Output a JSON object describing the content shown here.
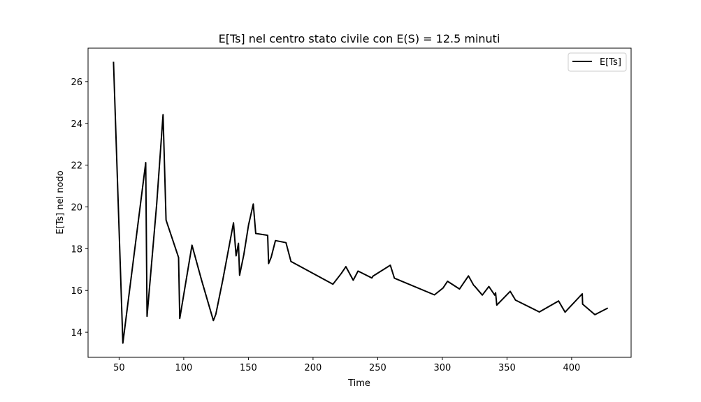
{
  "chart_data": {
    "type": "line",
    "title": "E[Ts] nel centro stato civile con E(S) = 12.5 minuti",
    "xlabel": "Time",
    "ylabel": "E[Ts] nel nodo",
    "xlim": [
      26,
      446
    ],
    "ylim": [
      12.8,
      27.6
    ],
    "xticks": [
      50,
      100,
      150,
      200,
      250,
      300,
      350,
      400
    ],
    "yticks": [
      14,
      16,
      18,
      20,
      22,
      24,
      26
    ],
    "grid": false,
    "legend": "top-right",
    "series": [
      {
        "name": "E[Ts]",
        "color": "#000000",
        "x": [
          45.7,
          52.9,
          70.6,
          71.6,
          79.1,
          84.0,
          86.3,
          96.0,
          96.9,
          106.4,
          113.7,
          122.9,
          124.8,
          130.2,
          138.5,
          140.5,
          142.3,
          143.2,
          146.5,
          150.1,
          153.8,
          155.7,
          164.9,
          165.6,
          167.6,
          170.9,
          179.1,
          182.9,
          215.4,
          221.9,
          225.4,
          231.1,
          234.8,
          245.5,
          246.4,
          259.8,
          262.9,
          293.9,
          300.6,
          304.0,
          313.3,
          320.2,
          324.2,
          325.1,
          330.9,
          336.0,
          340.5,
          341.2,
          342.1,
          352.5,
          356.6,
          375.0,
          389.9,
          394.9,
          396.2,
          408.2,
          408.5,
          418.0,
          428.0
        ],
        "y": [
          26.95,
          13.48,
          22.12,
          14.76,
          20.14,
          24.42,
          19.37,
          17.58,
          14.66,
          18.17,
          16.52,
          14.56,
          14.86,
          16.51,
          19.24,
          17.66,
          18.26,
          16.73,
          17.72,
          19.13,
          20.14,
          18.73,
          18.64,
          17.29,
          17.59,
          18.39,
          18.29,
          17.39,
          16.3,
          16.82,
          17.14,
          16.49,
          16.93,
          16.6,
          16.69,
          17.21,
          16.59,
          15.79,
          16.12,
          16.44,
          16.07,
          16.7,
          16.25,
          16.2,
          15.78,
          16.19,
          15.78,
          15.89,
          15.3,
          15.96,
          15.54,
          14.97,
          15.5,
          14.96,
          15.05,
          15.84,
          15.35,
          14.84,
          15.16
        ]
      }
    ]
  }
}
